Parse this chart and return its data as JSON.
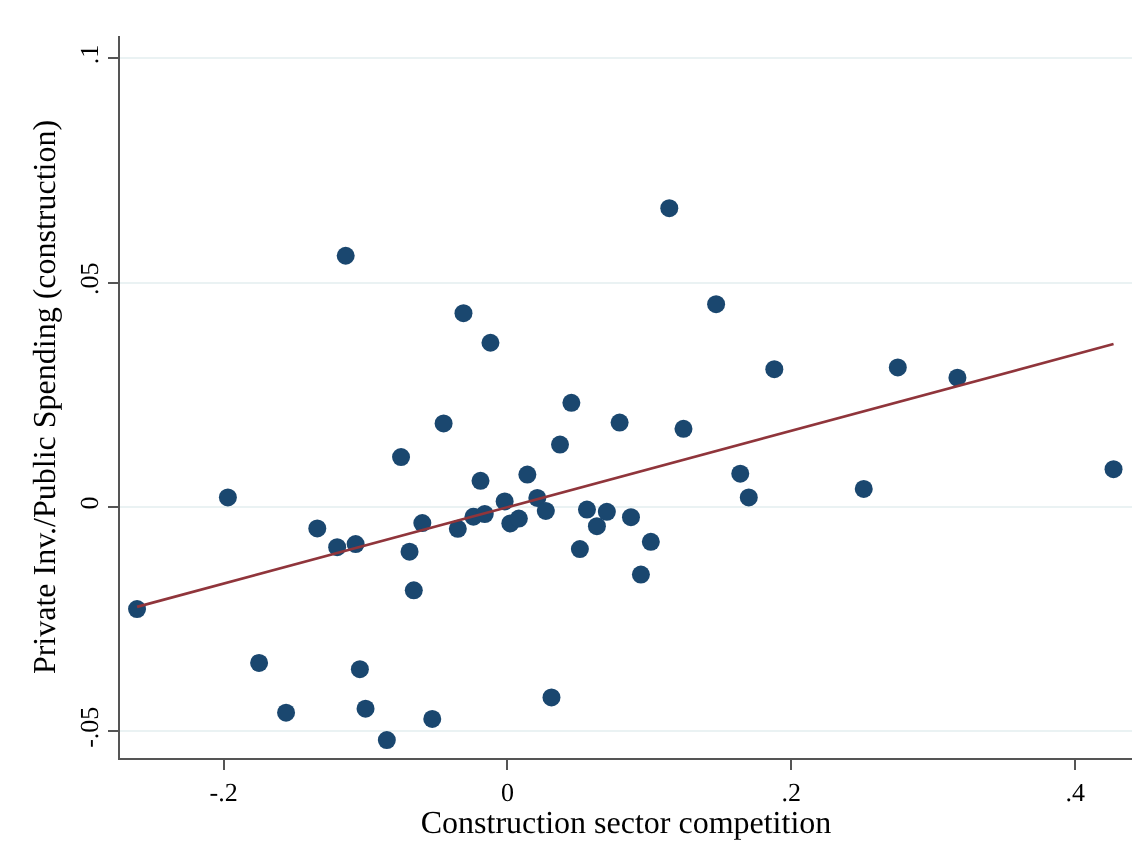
{
  "chart_data": {
    "type": "scatter",
    "xlabel": "Construction sector competition",
    "ylabel": "Private Inv./Public Spending (construction)",
    "xlim": [
      -0.273,
      0.44
    ],
    "ylim": [
      -0.056,
      0.105
    ],
    "xticks": [
      {
        "value": -0.2,
        "label": "-.2"
      },
      0,
      {
        "value": 0.2,
        "label": ".2"
      },
      {
        "value": 0.4,
        "label": ".4"
      }
    ],
    "yticks": [
      {
        "value": -0.05,
        "label": "-.05"
      },
      0,
      {
        "value": 0.05,
        "label": ".05"
      },
      {
        "value": 0.1,
        "label": ".1"
      }
    ],
    "grid": "y",
    "series": [
      {
        "marker": "circle",
        "color": "#1a476f",
        "x": [
          -0.261,
          -0.197,
          -0.175,
          -0.156,
          -0.134,
          -0.12,
          -0.107,
          -0.114,
          -0.104,
          -0.1,
          -0.085,
          -0.075,
          -0.069,
          -0.066,
          -0.06,
          -0.053,
          -0.045,
          -0.035,
          -0.031,
          -0.024,
          -0.019,
          -0.016,
          -0.012,
          -0.002,
          0.002,
          0.008,
          0.014,
          0.021,
          0.027,
          0.031,
          0.037,
          0.045,
          0.051,
          0.056,
          0.063,
          0.07,
          0.079,
          0.087,
          0.094,
          0.101,
          0.114,
          0.124,
          0.147,
          0.164,
          0.17,
          0.188,
          0.251,
          0.275,
          0.317,
          0.427
        ],
        "values": [
          -0.0228,
          0.0021,
          -0.0348,
          -0.0459,
          -0.0048,
          -0.009,
          -0.0083,
          0.056,
          -0.0362,
          -0.045,
          -0.052,
          0.0111,
          -0.01,
          -0.0186,
          -0.0036,
          -0.0473,
          0.0186,
          -0.0049,
          0.0432,
          -0.0022,
          0.0058,
          -0.0016,
          0.0366,
          0.0012,
          -0.0037,
          -0.0026,
          0.0072,
          0.002,
          -0.0009,
          -0.0425,
          0.0139,
          0.0232,
          -0.0094,
          -0.0006,
          -0.0043,
          -0.0011,
          0.0188,
          -0.0023,
          -0.0151,
          -0.0078,
          0.0666,
          0.0174,
          0.0452,
          0.0074,
          0.0021,
          0.0307,
          0.004,
          0.0311,
          0.0288,
          0.0084
        ]
      },
      {
        "type": "line",
        "color": "#90353b",
        "x": [
          -0.261,
          0.427
        ],
        "values": [
          -0.0223,
          0.0363
        ]
      }
    ]
  }
}
